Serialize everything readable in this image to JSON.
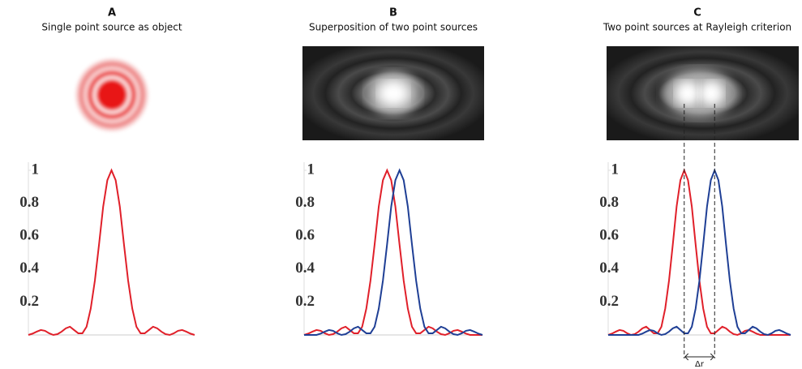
{
  "chart_data": [
    {
      "type": "line",
      "title": "A",
      "subtitle": "Single point source as object",
      "x": [
        -10,
        -9.5,
        -9,
        -8.5,
        -8,
        -7.5,
        -7,
        -6.5,
        -6,
        -5.5,
        -5,
        -4.5,
        -4,
        -3.5,
        -3,
        -2.5,
        -2,
        -1.5,
        -1,
        -0.5,
        0,
        0.5,
        1,
        1.5,
        2,
        2.5,
        3,
        3.5,
        4,
        4.5,
        5,
        5.5,
        6,
        6.5,
        7,
        7.5,
        8,
        8.5,
        9,
        9.5,
        10
      ],
      "xlim": [
        -10,
        10
      ],
      "ylim": [
        0,
        1
      ],
      "yticks": [
        0.2,
        0.4,
        0.6,
        0.8,
        1
      ],
      "series": [
        {
          "color": "#e0202a",
          "values": [
            0,
            0.008,
            0.02,
            0.03,
            0.025,
            0.01,
            0,
            0.005,
            0.02,
            0.04,
            0.05,
            0.03,
            0.01,
            0.01,
            0.05,
            0.16,
            0.33,
            0.55,
            0.78,
            0.94,
            1,
            0.94,
            0.78,
            0.55,
            0.33,
            0.16,
            0.05,
            0.01,
            0.01,
            0.03,
            0.05,
            0.04,
            0.02,
            0.005,
            0,
            0.01,
            0.025,
            0.03,
            0.02,
            0.008,
            0
          ]
        }
      ]
    },
    {
      "type": "line",
      "title": "B",
      "subtitle": "Superposition of two point sources",
      "x": [
        -10,
        -9.5,
        -9,
        -8.5,
        -8,
        -7.5,
        -7,
        -6.5,
        -6,
        -5.5,
        -5,
        -4.5,
        -4,
        -3.5,
        -3,
        -2.5,
        -2,
        -1.5,
        -1,
        -0.5,
        0,
        0.5,
        1,
        1.5,
        2,
        2.5,
        3,
        3.5,
        4,
        4.5,
        5,
        5.5,
        6,
        6.5,
        7,
        7.5,
        8,
        8.5,
        9,
        9.5,
        10,
        10.5,
        11,
        11.5
      ],
      "xlim": [
        -10,
        11.5
      ],
      "ylim": [
        0,
        1
      ],
      "yticks": [
        0.2,
        0.4,
        0.6,
        0.8,
        1
      ],
      "series": [
        {
          "color": "#e0202a",
          "values": [
            0,
            0.008,
            0.02,
            0.03,
            0.025,
            0.01,
            0,
            0.005,
            0.02,
            0.04,
            0.05,
            0.03,
            0.01,
            0.01,
            0.05,
            0.16,
            0.33,
            0.55,
            0.78,
            0.94,
            1,
            0.94,
            0.78,
            0.55,
            0.33,
            0.16,
            0.05,
            0.01,
            0.01,
            0.03,
            0.05,
            0.04,
            0.02,
            0.005,
            0,
            0.01,
            0.025,
            0.03,
            0.02,
            0.008,
            0,
            0,
            0,
            0
          ]
        },
        {
          "color": "#1f3f95",
          "values": [
            0,
            0,
            0,
            0,
            0.008,
            0.02,
            0.03,
            0.025,
            0.01,
            0,
            0.005,
            0.02,
            0.04,
            0.05,
            0.03,
            0.01,
            0.01,
            0.05,
            0.16,
            0.33,
            0.55,
            0.78,
            0.94,
            1,
            0.94,
            0.78,
            0.55,
            0.33,
            0.16,
            0.05,
            0.01,
            0.01,
            0.03,
            0.05,
            0.04,
            0.02,
            0.005,
            0,
            0.01,
            0.025,
            0.03,
            0.02,
            0.008,
            0
          ]
        }
      ]
    },
    {
      "type": "line",
      "title": "C",
      "subtitle": "Two point sources at Rayleigh criterion",
      "annotation": "Δr",
      "x": [
        -10,
        -9.5,
        -9,
        -8.5,
        -8,
        -7.5,
        -7,
        -6.5,
        -6,
        -5.5,
        -5,
        -4.5,
        -4,
        -3.5,
        -3,
        -2.5,
        -2,
        -1.5,
        -1,
        -0.5,
        0,
        0.5,
        1,
        1.5,
        2,
        2.5,
        3,
        3.5,
        4,
        4.5,
        5,
        5.5,
        6,
        6.5,
        7,
        7.5,
        8,
        8.5,
        9,
        9.5,
        10,
        10.5,
        11,
        11.5,
        12,
        12.5,
        13,
        13.5,
        14
      ],
      "xlim": [
        -10,
        14
      ],
      "ylim": [
        0,
        1
      ],
      "yticks": [
        0.2,
        0.4,
        0.6,
        0.8,
        1
      ],
      "series": [
        {
          "color": "#e0202a",
          "values": [
            0,
            0.008,
            0.02,
            0.03,
            0.025,
            0.01,
            0,
            0.005,
            0.02,
            0.04,
            0.05,
            0.03,
            0.01,
            0.01,
            0.05,
            0.16,
            0.33,
            0.55,
            0.78,
            0.94,
            1,
            0.94,
            0.78,
            0.55,
            0.33,
            0.16,
            0.05,
            0.01,
            0.01,
            0.03,
            0.05,
            0.04,
            0.02,
            0.005,
            0,
            0.01,
            0.025,
            0.03,
            0.02,
            0.008,
            0,
            0,
            0,
            0,
            0,
            0,
            0,
            0,
            0
          ]
        },
        {
          "color": "#1f3f95",
          "values": [
            0,
            0,
            0,
            0,
            0,
            0,
            0,
            0,
            0,
            0.008,
            0.02,
            0.03,
            0.025,
            0.01,
            0,
            0.005,
            0.02,
            0.04,
            0.05,
            0.03,
            0.01,
            0.01,
            0.05,
            0.16,
            0.33,
            0.55,
            0.78,
            0.94,
            1,
            0.94,
            0.78,
            0.55,
            0.33,
            0.16,
            0.05,
            0.01,
            0.01,
            0.03,
            0.05,
            0.04,
            0.02,
            0.005,
            0,
            0.01,
            0.025,
            0.03,
            0.02,
            0.008,
            0
          ]
        }
      ]
    }
  ]
}
